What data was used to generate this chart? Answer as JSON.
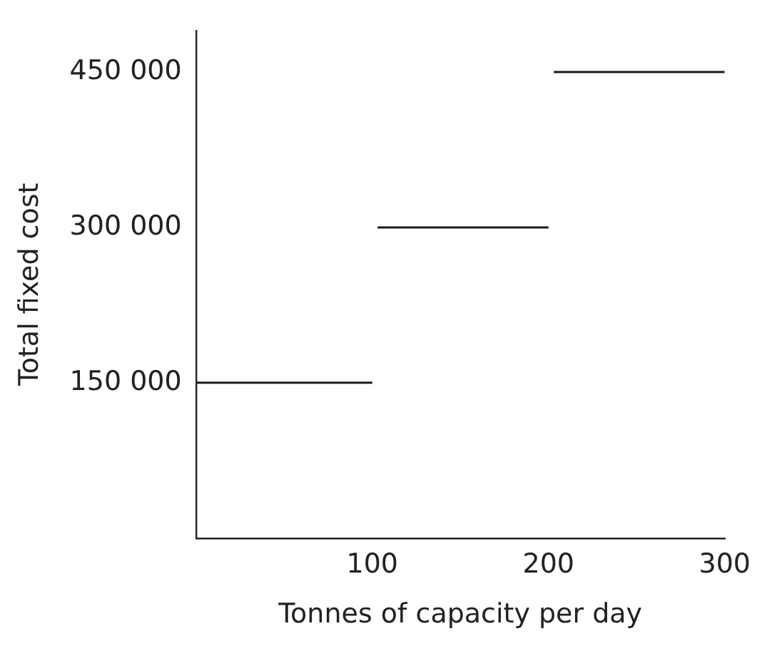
{
  "chart_data": {
    "type": "line",
    "xlabel": "Tonnes of capacity per day",
    "ylabel": "Total fixed cost",
    "series": [
      {
        "color": "#1a1a1a",
        "x": [
          0,
          100
        ],
        "values": [
          150000,
          150000
        ]
      },
      {
        "color": "#1a1a1a",
        "x": [
          103,
          200
        ],
        "values": [
          300000,
          300000
        ]
      },
      {
        "color": "#1a1a1a",
        "x": [
          203,
          300
        ],
        "values": [
          450000,
          450000
        ]
      }
    ],
    "xlim": [
      0,
      300
    ],
    "xticks": [
      100,
      200,
      300
    ],
    "ylim": [
      0,
      490000
    ],
    "yticks": [
      {
        "value": 150000,
        "label": "150 000"
      },
      {
        "value": 300000,
        "label": "300 000"
      },
      {
        "value": 450000,
        "label": "450 000"
      }
    ],
    "grid": false,
    "legend": false,
    "marker": "none",
    "line_style": "solid"
  }
}
